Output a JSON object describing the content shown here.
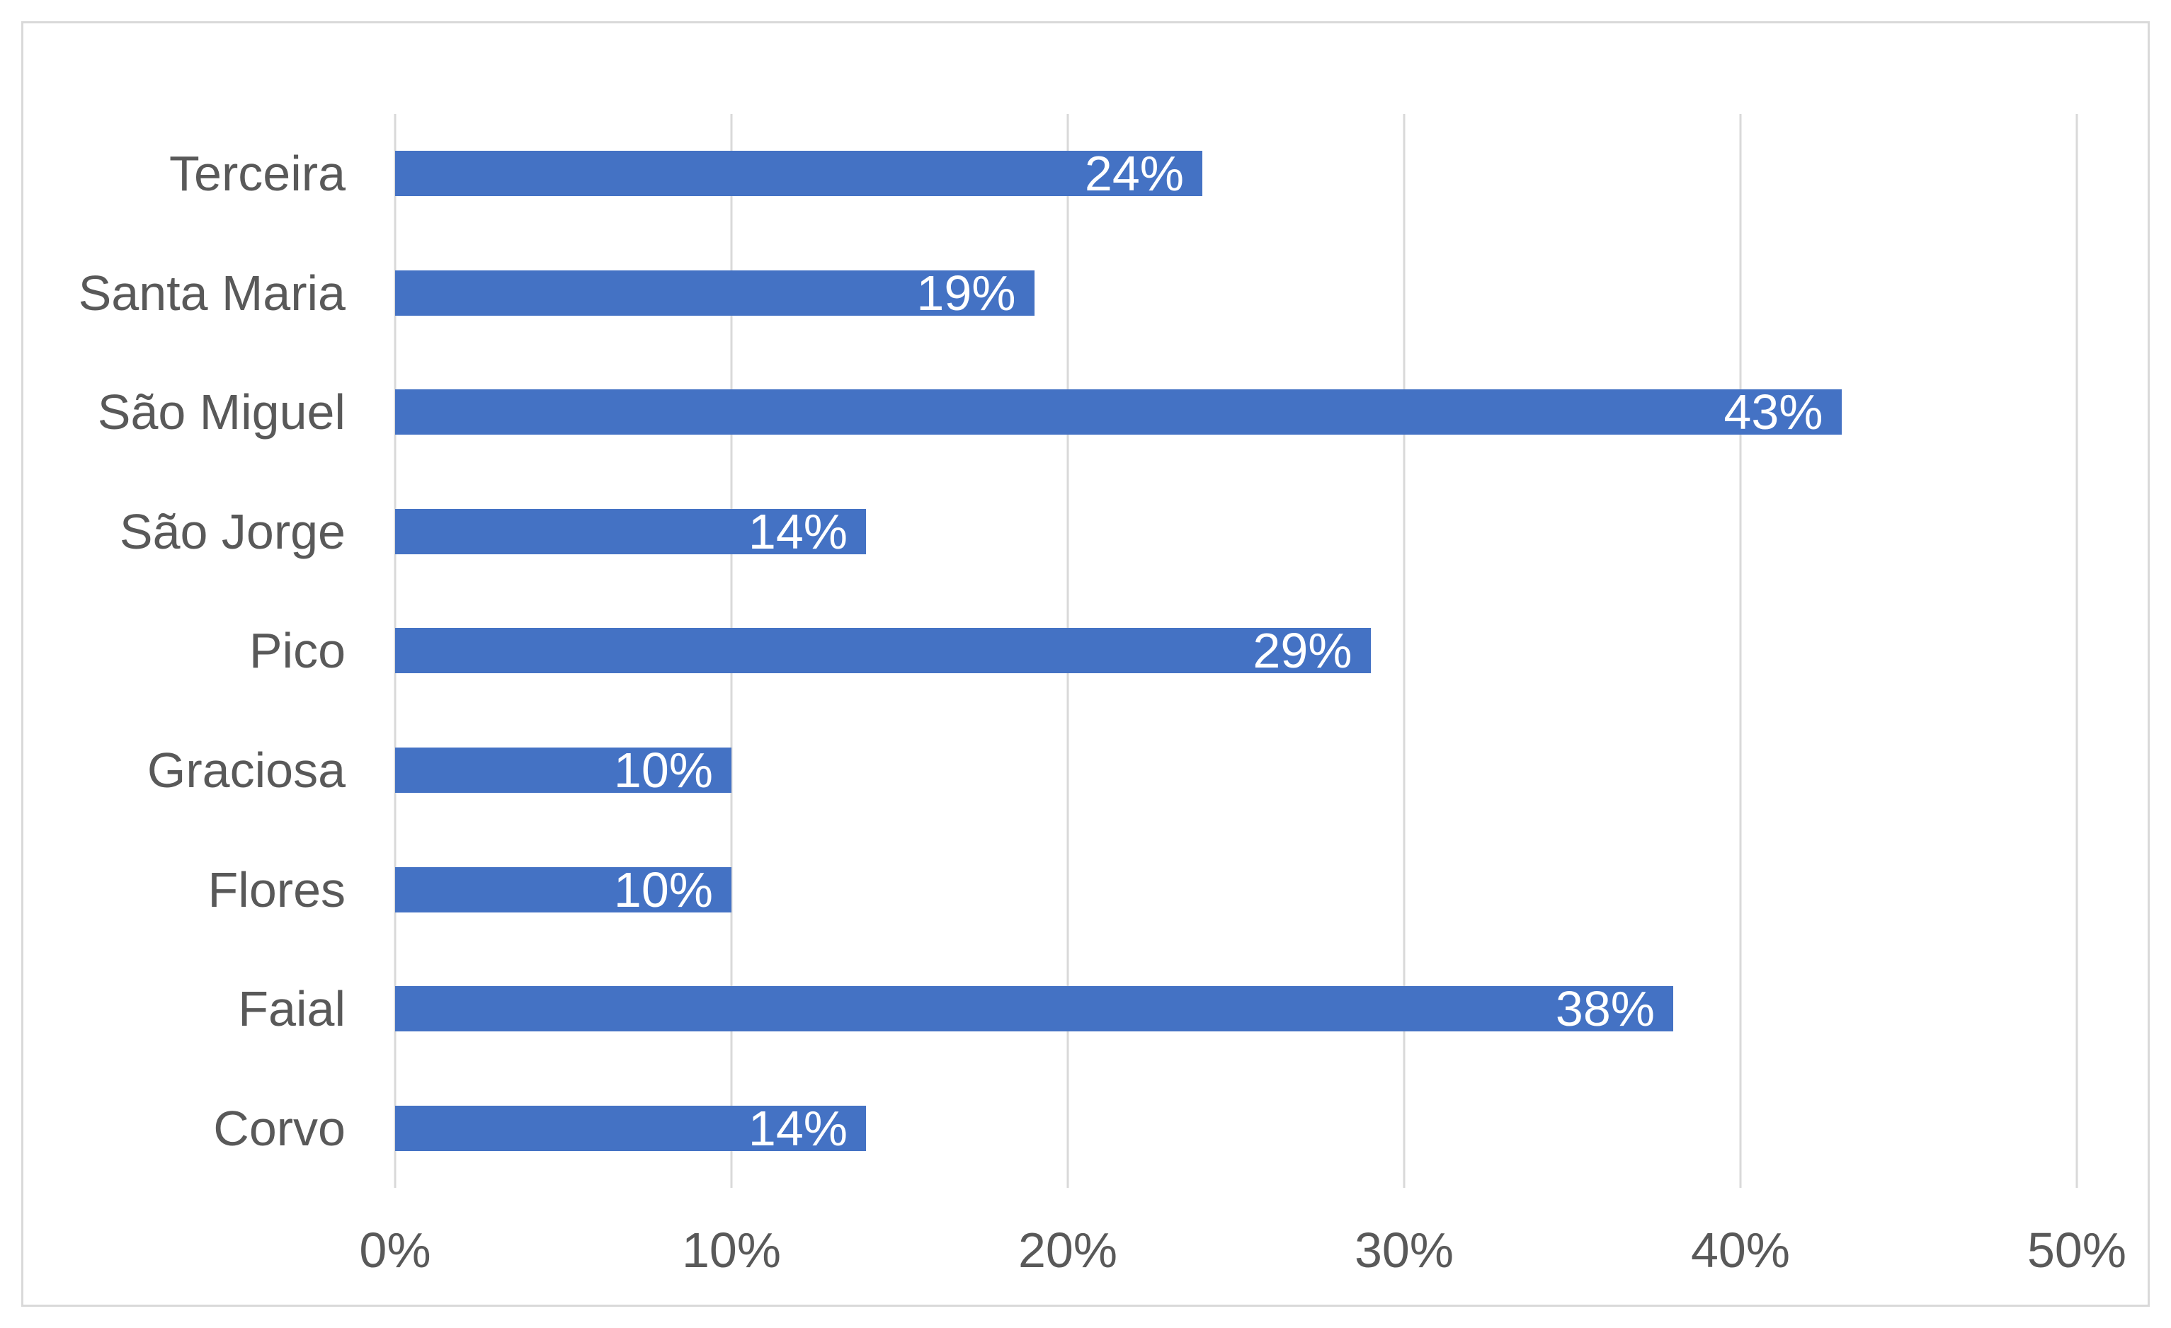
{
  "chart_data": {
    "type": "bar",
    "orientation": "horizontal",
    "title": "",
    "xlabel": "",
    "ylabel": "",
    "categories": [
      "Terceira",
      "Santa Maria",
      "São Miguel",
      "São Jorge",
      "Pico",
      "Graciosa",
      "Flores",
      "Faial",
      "Corvo"
    ],
    "values": [
      24,
      19,
      43,
      14,
      29,
      10,
      10,
      38,
      14
    ],
    "data_labels": [
      "24%",
      "19%",
      "43%",
      "14%",
      "29%",
      "10%",
      "10%",
      "38%",
      "14%"
    ],
    "xlim": [
      0,
      50
    ],
    "x_ticks": [
      {
        "value": 0,
        "label": "0%"
      },
      {
        "value": 10,
        "label": "10%"
      },
      {
        "value": 20,
        "label": "20%"
      },
      {
        "value": 30,
        "label": "30%"
      },
      {
        "value": 40,
        "label": "40%"
      },
      {
        "value": 50,
        "label": "50%"
      }
    ],
    "grid": "vertical",
    "legend": "none",
    "data_label_position": "inside-end",
    "colors": {
      "bar": "#4472C4",
      "data_label": "#FFFFFF",
      "axis_text": "#595959",
      "gridline": "#D9D9D9",
      "chart_border": "#D9D9D9",
      "background": "#FFFFFF"
    }
  }
}
